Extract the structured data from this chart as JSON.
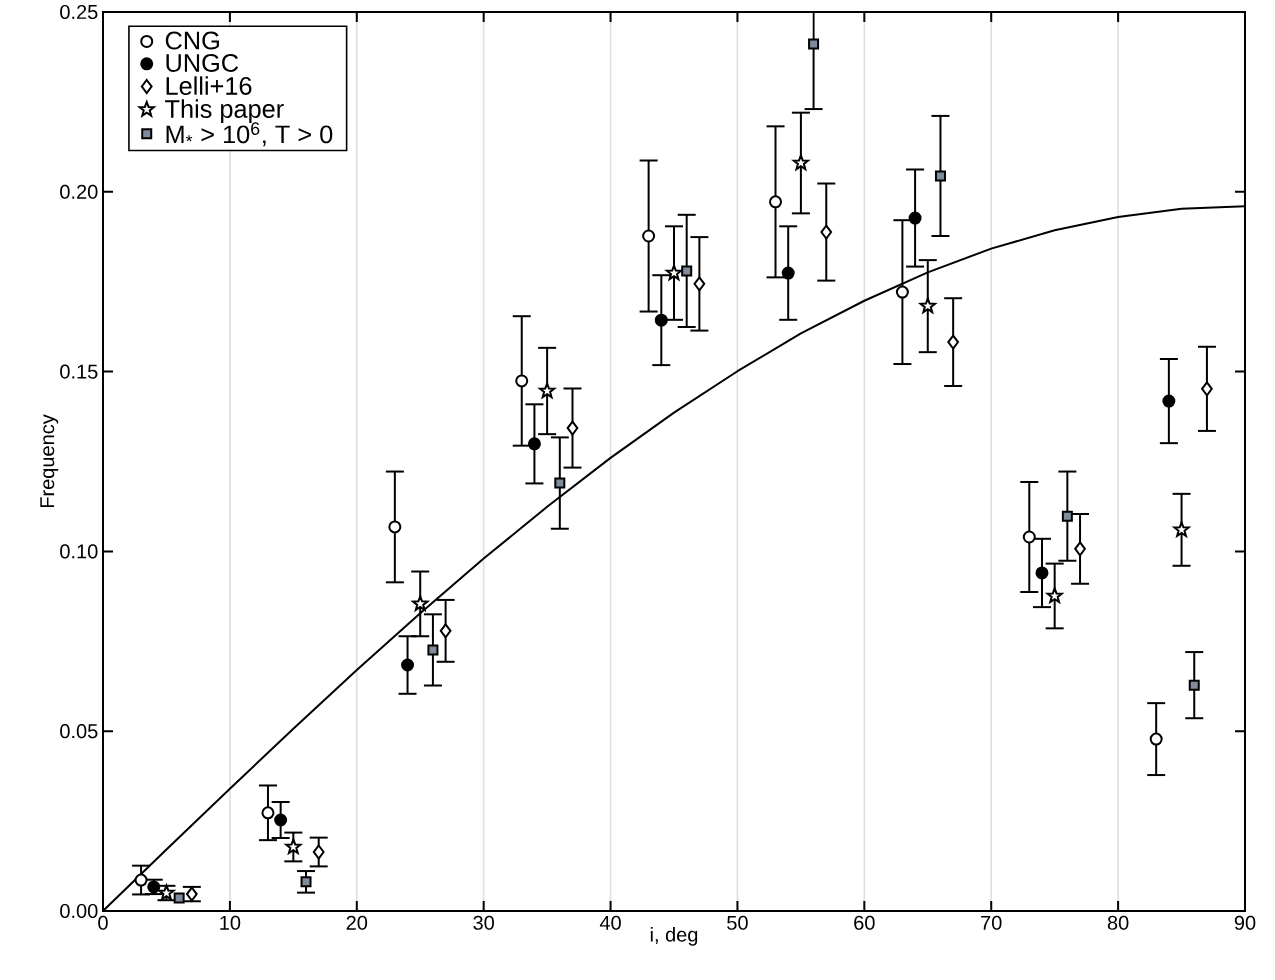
{
  "chart_data": {
    "type": "scatter",
    "xlabel": "i, deg",
    "ylabel": "Frequency",
    "xlim": [
      0,
      90
    ],
    "ylim": [
      0,
      0.25
    ],
    "xticks": [
      0,
      10,
      20,
      30,
      40,
      50,
      60,
      70,
      80,
      90
    ],
    "yticks": [
      {
        "value": 0,
        "label": "0.00"
      },
      {
        "value": 0.05,
        "label": "0.05"
      },
      {
        "value": 0.1,
        "label": "0.10"
      },
      {
        "value": 0.15,
        "label": "0.15"
      },
      {
        "value": 0.2,
        "label": "0.20"
      },
      {
        "value": 0.25,
        "label": "0.25"
      }
    ],
    "grid": "x",
    "legend": "top left",
    "series": [
      {
        "name": "CNG",
        "marker": "circle",
        "color": "#ffffff",
        "x": [
          3,
          13,
          23,
          33,
          43,
          53,
          63,
          73,
          83
        ],
        "values": [
          0.0086,
          0.0273,
          0.1068,
          0.1474,
          0.1877,
          0.1972,
          0.1721,
          0.104,
          0.0478
        ],
        "errors": [
          0.004,
          0.0076,
          0.0154,
          0.018,
          0.021,
          0.021,
          0.02,
          0.0153,
          0.01
        ]
      },
      {
        "name": "UNGC",
        "marker": "circle",
        "color": "#000000",
        "x": [
          4,
          14,
          24,
          34,
          44,
          54,
          64,
          74,
          84
        ],
        "values": [
          0.0067,
          0.0253,
          0.0684,
          0.1299,
          0.1643,
          0.1774,
          0.1927,
          0.094,
          0.1418
        ],
        "errors": [
          0.002,
          0.005,
          0.008,
          0.011,
          0.0125,
          0.013,
          0.0135,
          0.0095,
          0.0117
        ]
      },
      {
        "name": "Lelli+16",
        "marker": "diamond",
        "color": "#ffffff",
        "x": [
          7,
          17,
          27,
          37,
          47,
          57,
          67,
          77,
          87
        ],
        "values": [
          0.0047,
          0.0164,
          0.0779,
          0.1343,
          0.1744,
          0.1888,
          0.1582,
          0.1007,
          0.1452
        ],
        "errors": [
          0.002,
          0.004,
          0.0086,
          0.011,
          0.013,
          0.0135,
          0.0122,
          0.0097,
          0.0117
        ]
      },
      {
        "name": "This paper",
        "marker": "star",
        "color": "#ffffff",
        "x": [
          5,
          15,
          25,
          35,
          45,
          55,
          65,
          75,
          85
        ],
        "values": [
          0.005,
          0.0178,
          0.0854,
          0.1446,
          0.1774,
          0.208,
          0.1682,
          0.0876,
          0.106
        ],
        "errors": [
          0.002,
          0.004,
          0.009,
          0.012,
          0.013,
          0.014,
          0.0128,
          0.009,
          0.01
        ]
      },
      {
        "name": "M$_{*}$ > 10$^{6}$, T > 0",
        "marker": "square",
        "color": "#7f8c9c",
        "x": [
          6,
          16,
          26,
          36,
          46,
          56,
          66,
          76,
          86
        ],
        "values": [
          0.0036,
          0.0081,
          0.0726,
          0.119,
          0.178,
          0.2411,
          0.2044,
          0.1098,
          0.0628
        ],
        "errors": [
          null,
          0.003,
          0.0099,
          0.0127,
          0.0156,
          [
            0.223,
            0.25
          ],
          0.0167,
          0.0124,
          0.0092
        ]
      },
      {
        "type": "line",
        "marker": "none",
        "line_style": "solid",
        "color": "#000000",
        "x": [
          0,
          5,
          10,
          15,
          20,
          25,
          30,
          35,
          40,
          45,
          50,
          55,
          60,
          65,
          70,
          75,
          80,
          85,
          90
        ],
        "values": [
          0,
          0.0171,
          0.034,
          0.0507,
          0.067,
          0.0828,
          0.098,
          0.1124,
          0.126,
          0.1386,
          0.1501,
          0.1606,
          0.1697,
          0.1776,
          0.1842,
          0.1893,
          0.193,
          0.1953,
          0.196
        ]
      }
    ]
  }
}
